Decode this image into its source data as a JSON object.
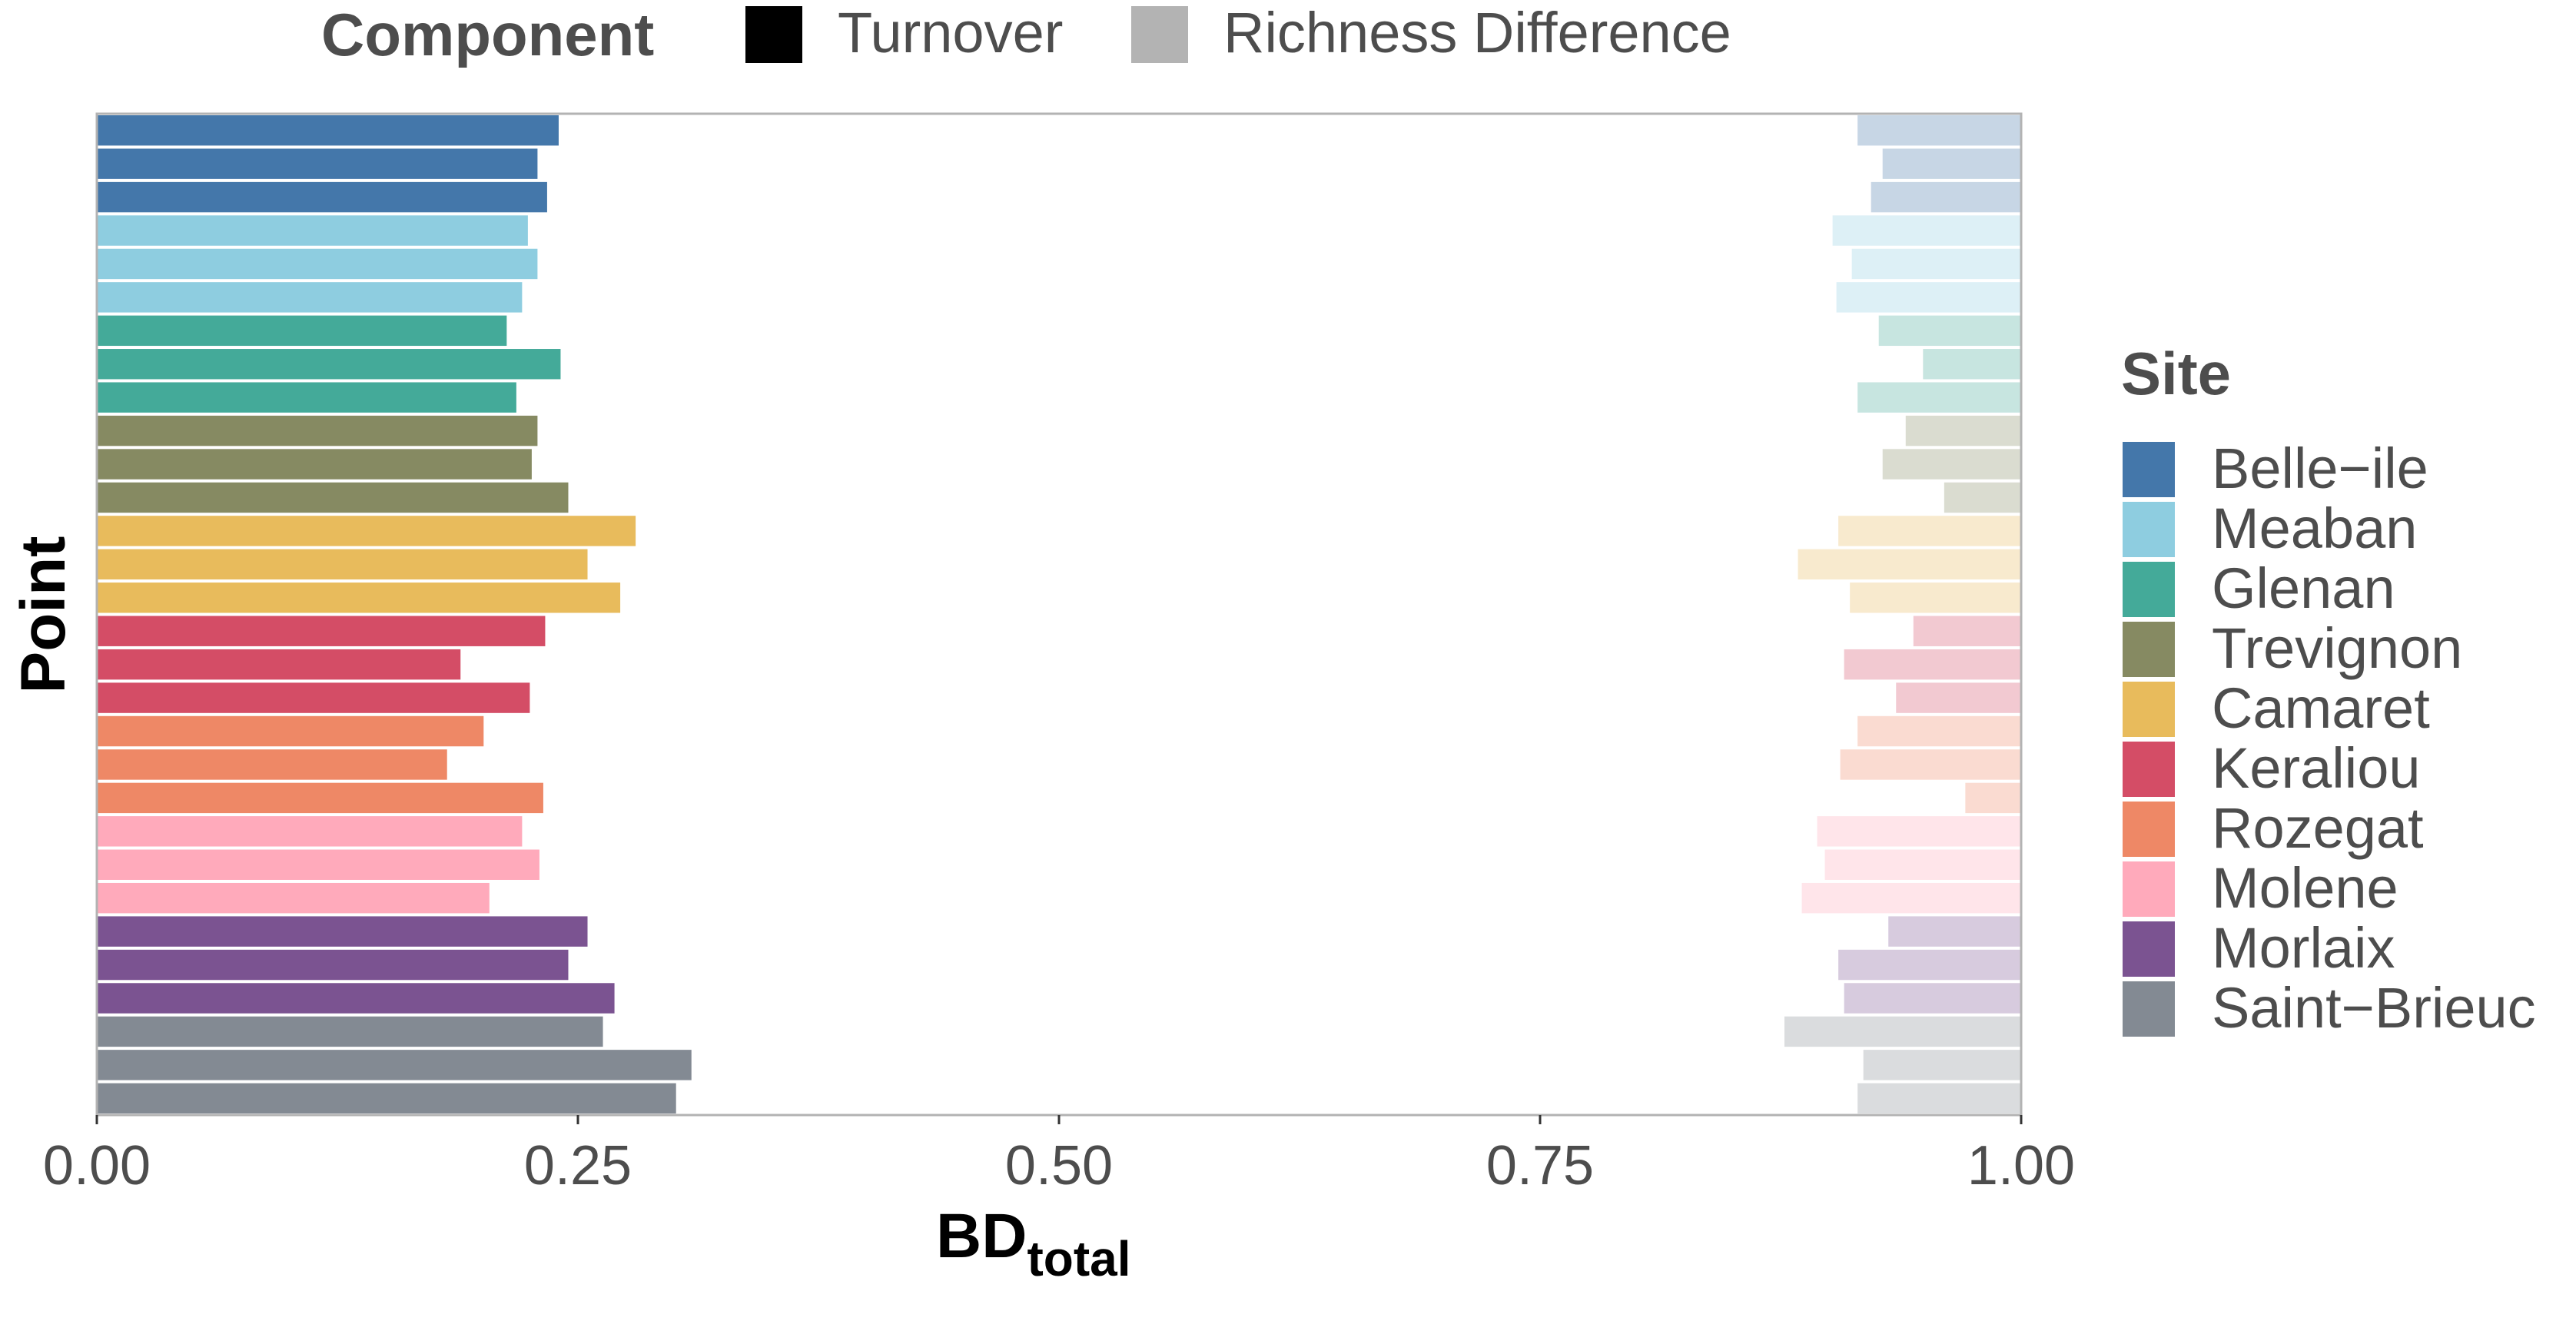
{
  "chart_data": {
    "type": "bar",
    "orientation": "horizontal",
    "stacked": true,
    "xlabel": "BD",
    "xlabel_subscript": "total",
    "ylabel": "Point",
    "xlim": [
      0,
      1
    ],
    "x_ticks": [
      "0.00",
      "0.25",
      "0.50",
      "0.75",
      "1.00"
    ],
    "x_tick_values": [
      0,
      0.25,
      0.5,
      0.75,
      1
    ],
    "grid": false,
    "component_legend": {
      "title": "Component",
      "placement": "top",
      "items": [
        {
          "label": "Turnover",
          "color": "#000000"
        },
        {
          "label": "Richness Difference",
          "color": "#b3b3b3"
        }
      ]
    },
    "site_legend": {
      "title": "Site",
      "placement": "right",
      "items": [
        {
          "label": "Belle−ile",
          "color": "#4477aa"
        },
        {
          "label": "Meaban",
          "color": "#8ecde0"
        },
        {
          "label": "Glenan",
          "color": "#44aa99"
        },
        {
          "label": "Trevignon",
          "color": "#868a62"
        },
        {
          "label": "Camaret",
          "color": "#e8bb5c"
        },
        {
          "label": "Keraliou",
          "color": "#d44d66"
        },
        {
          "label": "Rozegat",
          "color": "#ee8866"
        },
        {
          "label": "Molene",
          "color": "#ffaabb"
        },
        {
          "label": "Morlaix",
          "color": "#7b5391"
        },
        {
          "label": "Saint−Brieuc",
          "color": "#838a93"
        }
      ]
    },
    "series": [
      {
        "component": "Turnover",
        "values": [
          0.24,
          0.229,
          0.234,
          0.224,
          0.229,
          0.221,
          0.213,
          0.241,
          0.218,
          0.229,
          0.226,
          0.245,
          0.28,
          0.255,
          0.272,
          0.233,
          0.189,
          0.225,
          0.201,
          0.182,
          0.232,
          0.221,
          0.23,
          0.204,
          0.255,
          0.245,
          0.269,
          0.263,
          0.309,
          0.301
        ]
      },
      {
        "component": "Richness Difference",
        "values": [
          0.085,
          0.072,
          0.078,
          0.098,
          0.088,
          0.096,
          0.074,
          0.051,
          0.085,
          0.06,
          0.072,
          0.04,
          0.095,
          0.116,
          0.089,
          0.056,
          0.092,
          0.065,
          0.085,
          0.094,
          0.029,
          0.106,
          0.102,
          0.114,
          0.069,
          0.095,
          0.092,
          0.123,
          0.082,
          0.085
        ]
      }
    ],
    "point_sites": [
      "Belle−ile",
      "Belle−ile",
      "Belle−ile",
      "Meaban",
      "Meaban",
      "Meaban",
      "Glenan",
      "Glenan",
      "Glenan",
      "Trevignon",
      "Trevignon",
      "Trevignon",
      "Camaret",
      "Camaret",
      "Camaret",
      "Keraliou",
      "Keraliou",
      "Keraliou",
      "Rozegat",
      "Rozegat",
      "Rozegat",
      "Molene",
      "Molene",
      "Molene",
      "Morlaix",
      "Morlaix",
      "Morlaix",
      "Saint−Brieuc",
      "Saint−Brieuc",
      "Saint−Brieuc"
    ]
  }
}
